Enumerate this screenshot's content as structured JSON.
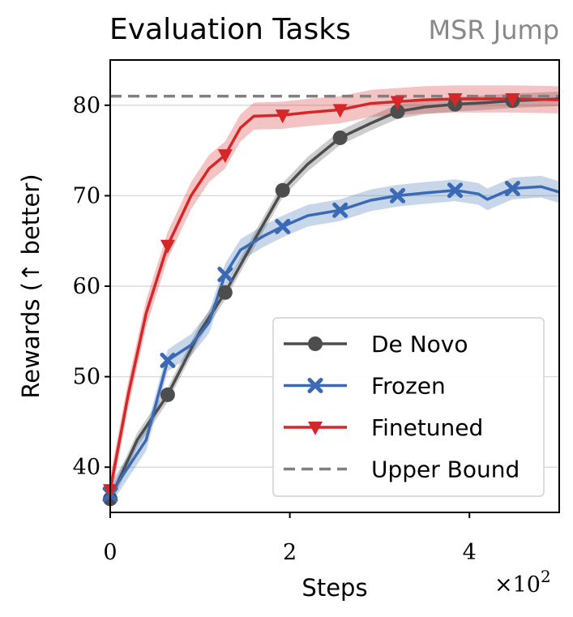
{
  "chart_data": {
    "type": "line",
    "title": "Evaluation Tasks",
    "subtitle": "MSR Jump",
    "xlabel": "Steps",
    "ylabel": "Rewards (↑ better)",
    "x_multiplier": "×10",
    "x_multiplier_exp": "2",
    "xlim": [
      0,
      5
    ],
    "ylim": [
      35,
      85
    ],
    "xticks": [
      0,
      2,
      4
    ],
    "yticks": [
      40,
      50,
      60,
      70,
      80
    ],
    "grid": "horizontal",
    "legend_position": "lower-right",
    "upper_bound": {
      "name": "Upper Bound",
      "value": 81,
      "color": "#808080",
      "style": "dashed"
    },
    "series": [
      {
        "name": "De Novo",
        "color": "#4d4d4d",
        "marker": "circle",
        "x": [
          0,
          0.3,
          0.64,
          1.0,
          1.28,
          1.6,
          1.92,
          2.2,
          2.56,
          2.9,
          3.2,
          3.5,
          3.84,
          4.2,
          4.48,
          5.0
        ],
        "y": [
          36.5,
          43,
          48,
          55,
          59.3,
          65,
          70.6,
          73.5,
          76.4,
          78,
          79.3,
          79.8,
          80.1,
          80.3,
          80.5,
          80.7
        ],
        "band": 0.8,
        "marker_x": [
          0,
          0.64,
          1.28,
          1.92,
          2.56,
          3.2,
          3.84,
          4.48
        ],
        "marker_y": [
          36.5,
          48,
          59.3,
          70.6,
          76.4,
          79.3,
          80.1,
          80.5
        ]
      },
      {
        "name": "Frozen",
        "color": "#3a6ab3",
        "marker": "x",
        "x": [
          0,
          0.2,
          0.4,
          0.64,
          0.9,
          1.1,
          1.28,
          1.45,
          1.7,
          1.92,
          2.2,
          2.56,
          2.9,
          3.2,
          3.5,
          3.84,
          4.1,
          4.2,
          4.48,
          4.8,
          5.0
        ],
        "y": [
          37,
          40,
          43,
          51.8,
          53.5,
          56,
          61.3,
          64,
          65.5,
          66.6,
          67.8,
          68.4,
          69.5,
          70.0,
          70.3,
          70.6,
          70.2,
          69.6,
          70.8,
          71,
          70.4
        ],
        "band": 1.2,
        "marker_x": [
          0,
          0.64,
          1.28,
          1.92,
          2.56,
          3.2,
          3.84,
          4.48
        ],
        "marker_y": [
          37,
          51.8,
          61.3,
          66.6,
          68.4,
          70.0,
          70.6,
          70.8
        ]
      },
      {
        "name": "Finetuned",
        "color": "#d62728",
        "marker": "triangle-down",
        "x": [
          0,
          0.2,
          0.4,
          0.64,
          0.9,
          1.1,
          1.28,
          1.45,
          1.6,
          1.92,
          2.2,
          2.56,
          2.9,
          3.2,
          3.5,
          3.84,
          4.2,
          4.48,
          5.0
        ],
        "y": [
          37.5,
          48,
          57,
          64.5,
          70,
          73,
          74.5,
          77.5,
          78.8,
          78.9,
          79.2,
          79.5,
          80.2,
          80.4,
          80.6,
          80.7,
          80.7,
          80.7,
          80.6
        ],
        "band": 1.5,
        "marker_x": [
          0,
          0.64,
          1.28,
          1.92,
          2.56,
          3.2,
          3.84,
          4.48
        ],
        "marker_y": [
          37.5,
          64.5,
          74.5,
          78.9,
          79.5,
          80.4,
          80.7,
          80.7
        ]
      }
    ]
  }
}
